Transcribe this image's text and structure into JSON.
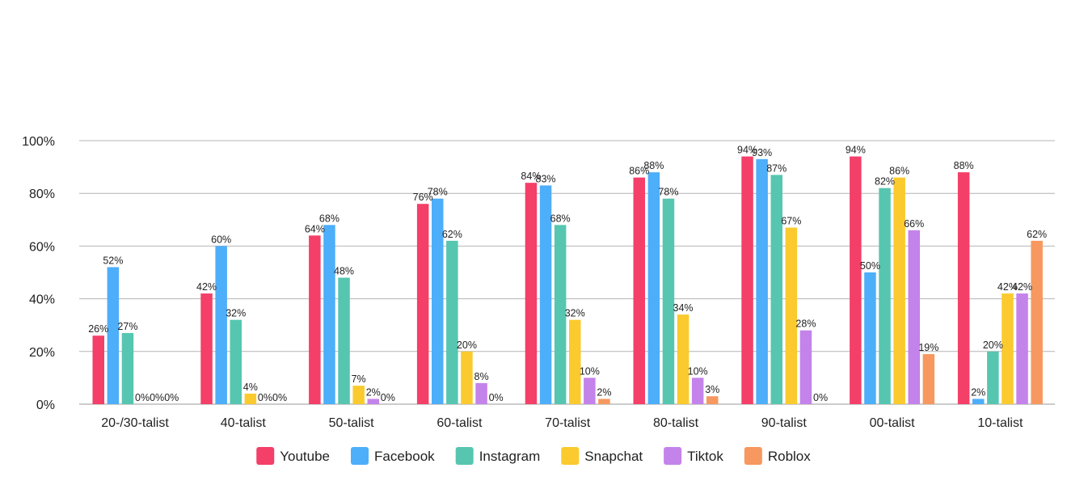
{
  "chart_data": {
    "type": "bar",
    "title": "",
    "xlabel": "",
    "ylabel": "",
    "ylim": [
      0,
      100
    ],
    "yticks": [
      "0%",
      "20%",
      "40%",
      "60%",
      "80%",
      "100%"
    ],
    "grid": true,
    "legend_position": "bottom",
    "value_suffix": "%",
    "categories": [
      "20-/30-talist",
      "40-talist",
      "50-talist",
      "60-talist",
      "70-talist",
      "80-talist",
      "90-talist",
      "00-talist",
      "10-talist"
    ],
    "series": [
      {
        "name": "Youtube",
        "color": "#F43F68",
        "values": [
          26,
          42,
          64,
          76,
          84,
          86,
          94,
          94,
          88
        ]
      },
      {
        "name": "Facebook",
        "color": "#4DAEFA",
        "values": [
          52,
          60,
          68,
          78,
          83,
          88,
          93,
          50,
          2
        ]
      },
      {
        "name": "Instagram",
        "color": "#56C6B0",
        "values": [
          27,
          32,
          48,
          62,
          68,
          78,
          87,
          82,
          20
        ]
      },
      {
        "name": "Snapchat",
        "color": "#FACA2E",
        "values": [
          0,
          4,
          7,
          20,
          32,
          34,
          67,
          86,
          42
        ]
      },
      {
        "name": "Tiktok",
        "color": "#C483EA",
        "values": [
          0,
          0,
          2,
          8,
          10,
          10,
          28,
          66,
          42
        ]
      },
      {
        "name": "Roblox",
        "color": "#F6985F",
        "values": [
          0,
          0,
          0,
          0,
          2,
          3,
          0,
          19,
          62
        ]
      }
    ]
  }
}
